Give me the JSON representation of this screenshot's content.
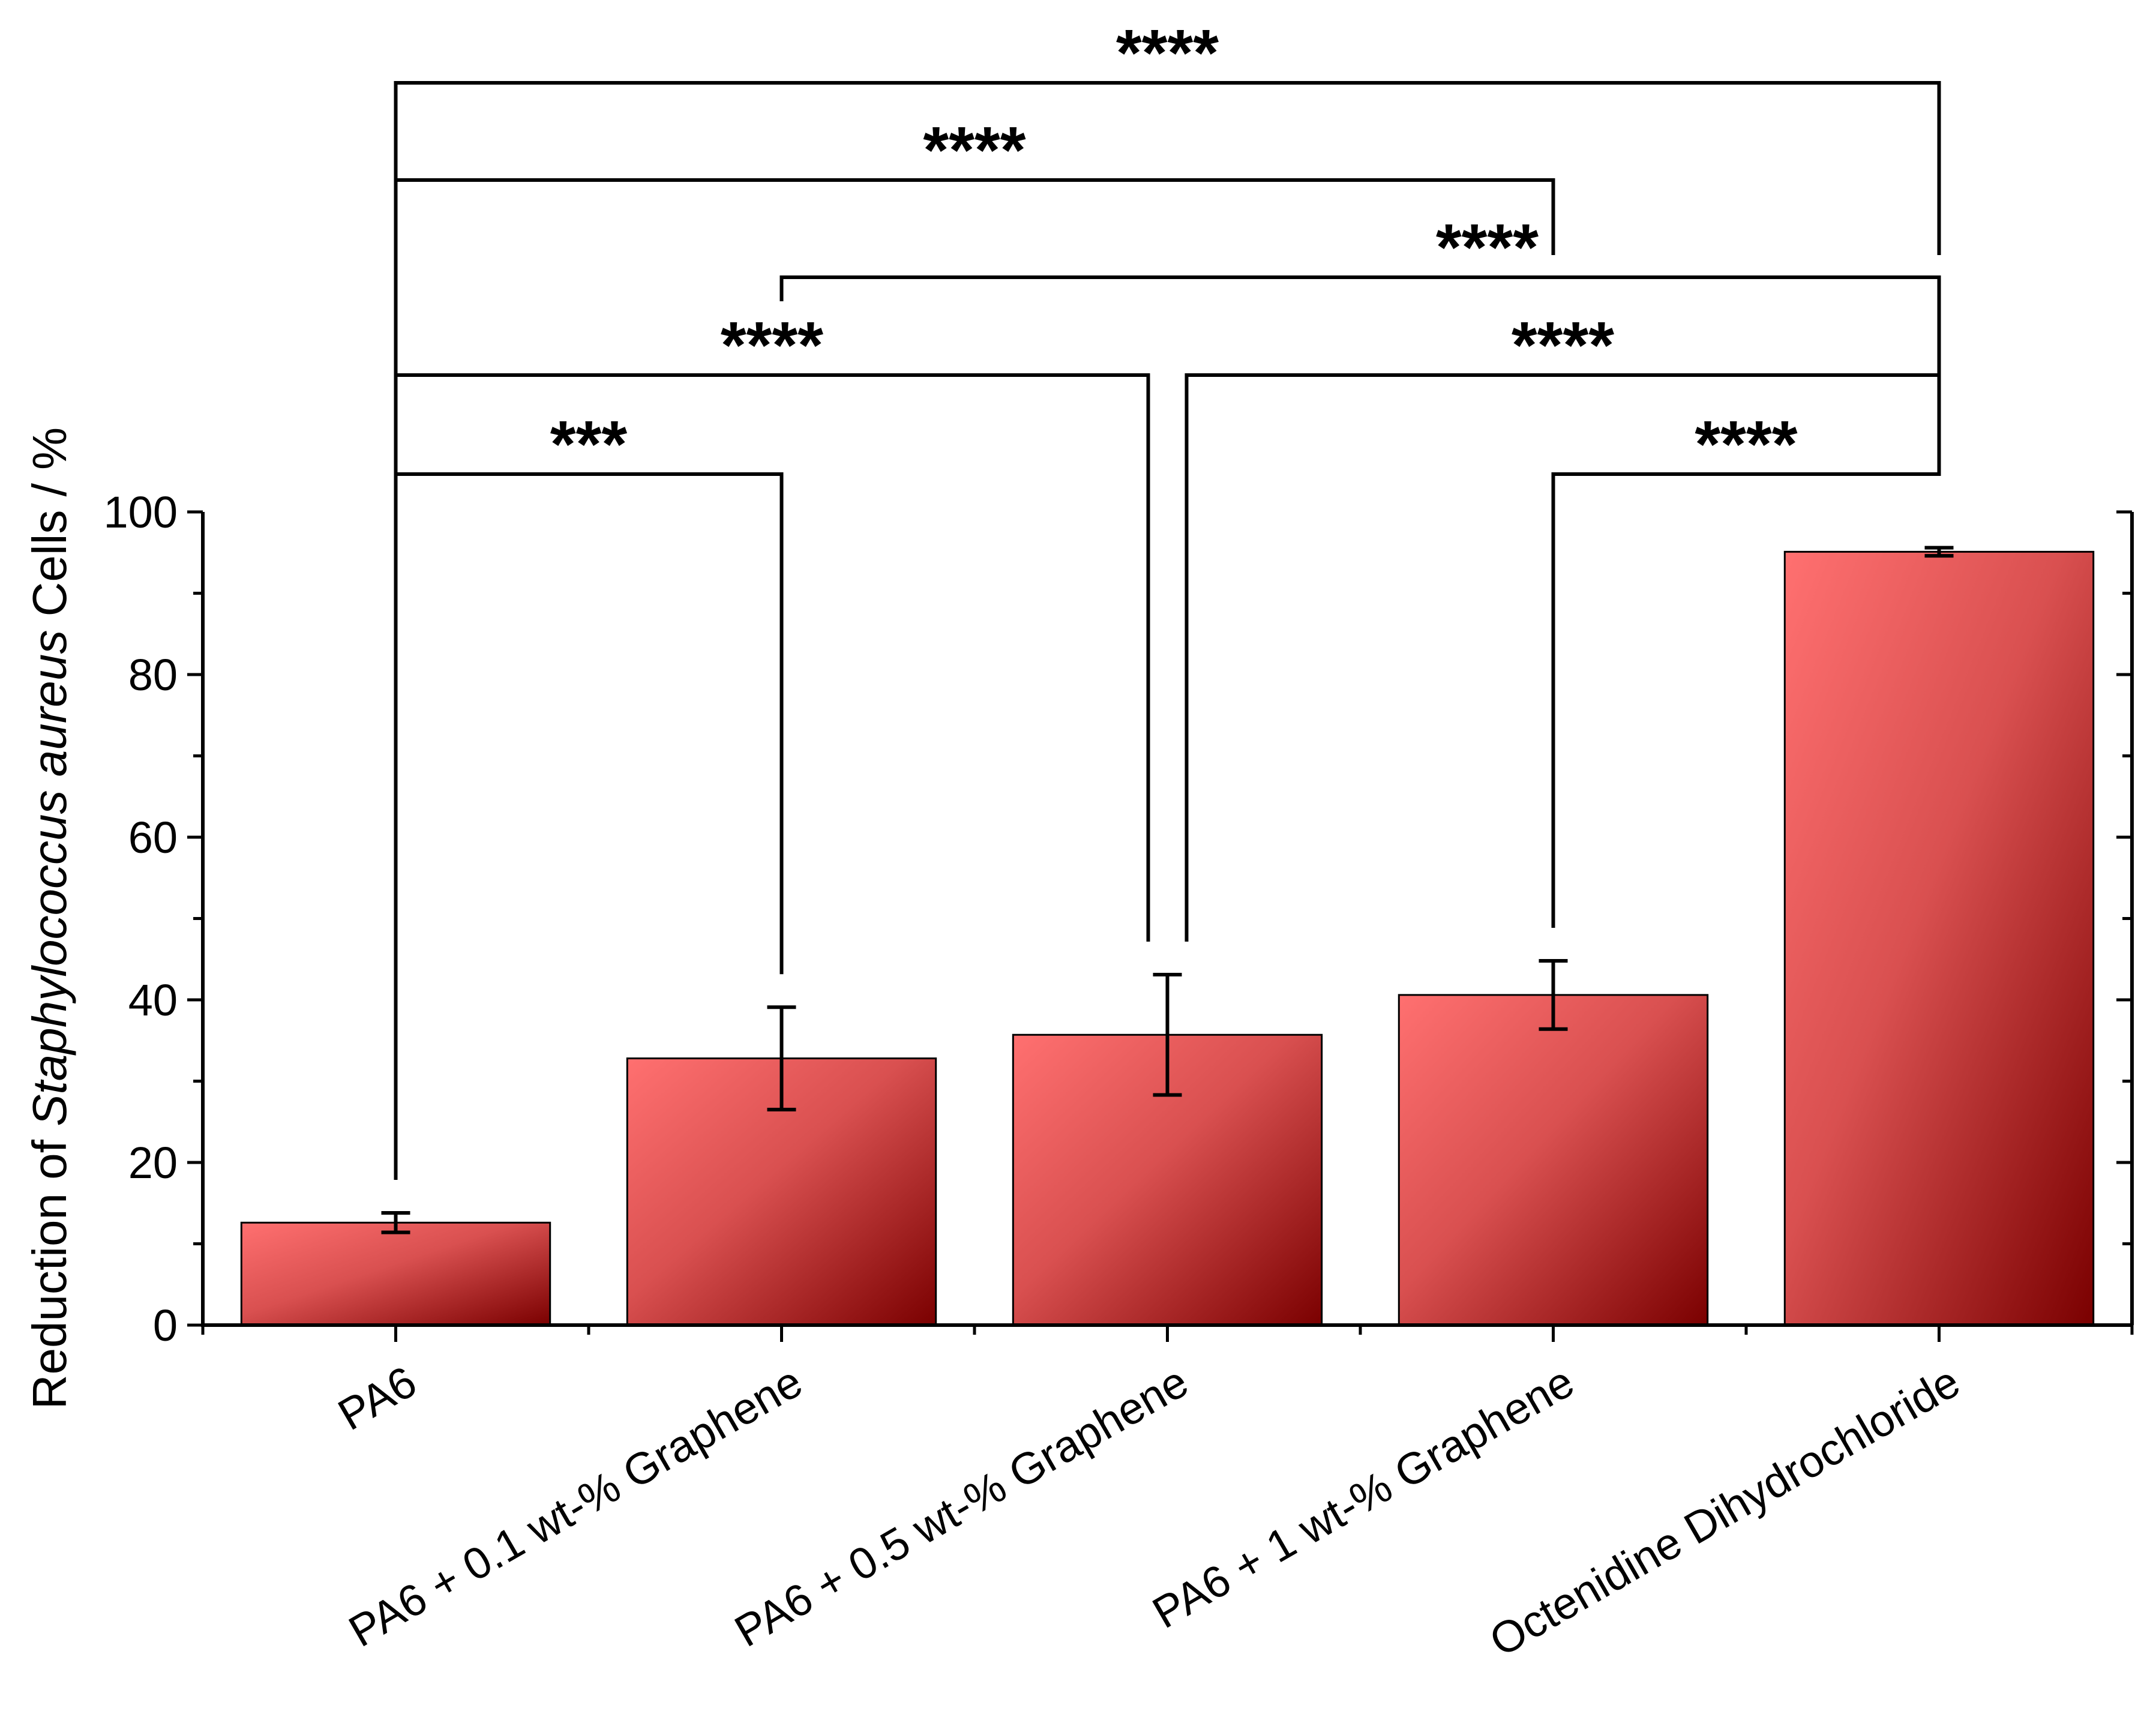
{
  "chart_data": {
    "type": "bar",
    "categories": [
      "PA6",
      "PA6 + 0.1 wt-% Graphene",
      "PA6 + 0.5 wt-% Graphene",
      "PA6 + 1 wt-% Graphene",
      "Octenidine Dihydrochloride"
    ],
    "series": [
      {
        "values": [
          12.6,
          32.8,
          35.7,
          40.6,
          95.1
        ],
        "error": [
          1.2,
          6.3,
          7.4,
          4.2,
          0.5
        ]
      }
    ],
    "ylabel_prefix": "Reduction of ",
    "ylabel_italic": "Staphylococcus aureus",
    "ylabel_suffix": " Cells / %",
    "ylim": [
      0,
      100
    ],
    "yticks": [
      "0",
      "20",
      "40",
      "60",
      "80",
      "100"
    ],
    "bar_colors": {
      "light": "#ff7070",
      "dark": "#7a0000"
    },
    "significance": [
      {
        "from": 0,
        "to": 1,
        "label": "***"
      },
      {
        "from": 0,
        "to": 2,
        "label": "****"
      },
      {
        "from": 2,
        "to": 4,
        "label": "****"
      },
      {
        "from": 3,
        "to": 4,
        "label": "****"
      },
      {
        "from": 1,
        "to": 4,
        "label": "****"
      },
      {
        "from": 0,
        "to": 3,
        "label": "****"
      },
      {
        "from": 0,
        "to": 4,
        "label": "****"
      }
    ]
  }
}
